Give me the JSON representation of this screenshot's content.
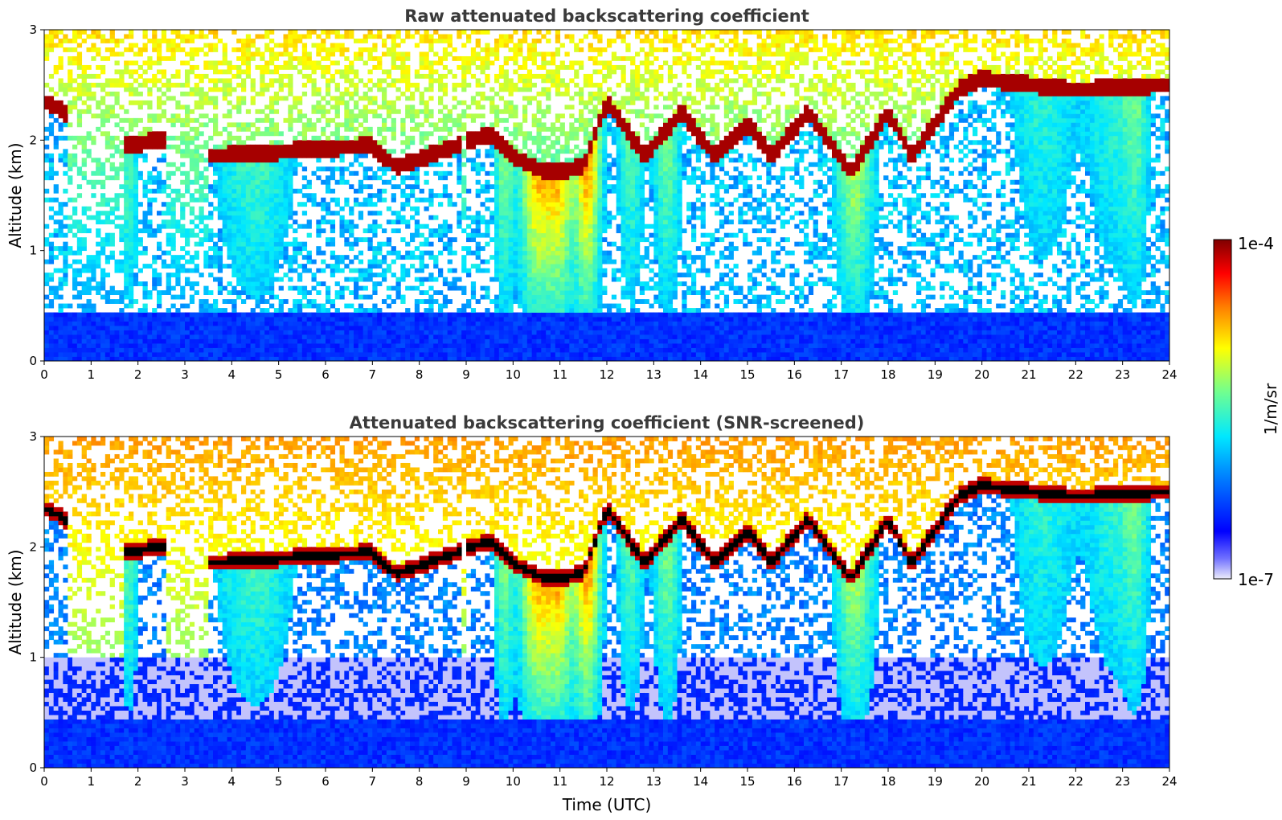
{
  "chart_data": [
    {
      "type": "heatmap",
      "title": "Raw attenuated backscattering coefficient",
      "xlabel": "",
      "ylabel": "Altitude (km)",
      "xlim": [
        0,
        24
      ],
      "ylim": [
        0,
        3
      ],
      "xticks": [
        "0",
        "1",
        "2",
        "3",
        "4",
        "5",
        "6",
        "7",
        "8",
        "9",
        "10",
        "11",
        "12",
        "13",
        "14",
        "15",
        "16",
        "17",
        "18",
        "19",
        "20",
        "21",
        "22",
        "23",
        "24"
      ],
      "yticks": [
        "0",
        "1",
        "2",
        "3"
      ],
      "cloud_layer_km": [
        [
          0,
          2.3
        ],
        [
          1.8,
          1.9
        ],
        [
          2.5,
          1.95
        ],
        [
          3.6,
          1.8
        ],
        [
          7,
          1.9
        ],
        [
          7.5,
          1.7
        ],
        [
          8.5,
          1.85
        ],
        [
          9.5,
          2.0
        ],
        [
          10,
          1.8
        ],
        [
          10.7,
          1.65
        ],
        [
          11.5,
          1.7
        ],
        [
          12,
          2.3
        ],
        [
          12.8,
          1.8
        ],
        [
          13.6,
          2.2
        ],
        [
          14.3,
          1.8
        ],
        [
          15,
          2.1
        ],
        [
          15.5,
          1.8
        ],
        [
          16.3,
          2.2
        ],
        [
          17.2,
          1.65
        ],
        [
          18,
          2.2
        ],
        [
          18.5,
          1.8
        ],
        [
          19.5,
          2.4
        ],
        [
          20,
          2.5
        ],
        [
          22,
          2.4
        ],
        [
          24,
          2.45
        ]
      ]
    },
    {
      "type": "heatmap",
      "title": "Attenuated backscattering coefficient (SNR-screened)",
      "xlabel": "Time (UTC)",
      "ylabel": "Altitude (km)",
      "xlim": [
        0,
        24
      ],
      "ylim": [
        0,
        3
      ],
      "xticks": [
        "0",
        "1",
        "2",
        "3",
        "4",
        "5",
        "6",
        "7",
        "8",
        "9",
        "10",
        "11",
        "12",
        "13",
        "14",
        "15",
        "16",
        "17",
        "18",
        "19",
        "20",
        "21",
        "22",
        "23",
        "24"
      ],
      "yticks": [
        "0",
        "1",
        "2",
        "3"
      ]
    }
  ],
  "colorbar": {
    "label": "1/m/sr",
    "max_label": "1e-4",
    "min_label": "1e-7",
    "scale": "log",
    "range": [
      1e-07,
      0.0001
    ]
  },
  "colors": {
    "low": "#e8e8f8",
    "blue": "#0000ff",
    "cyan": "#00ffff",
    "yellow": "#ffff00",
    "red": "#ff0000",
    "high": "#800000",
    "saturated": "#000000"
  }
}
